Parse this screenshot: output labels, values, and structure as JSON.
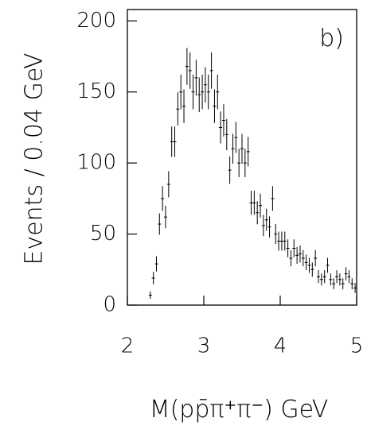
{
  "chart_data": {
    "type": "errorbar",
    "x_label": "M(pp̄π⁺π⁻)  GeV",
    "y_label": "Events / 0.04 GeV",
    "annotation": "b)",
    "x": [
      2.3,
      2.34,
      2.38,
      2.42,
      2.46,
      2.5,
      2.54,
      2.58,
      2.62,
      2.66,
      2.7,
      2.74,
      2.78,
      2.82,
      2.86,
      2.9,
      2.94,
      2.98,
      3.02,
      3.06,
      3.1,
      3.14,
      3.18,
      3.22,
      3.26,
      3.3,
      3.34,
      3.38,
      3.42,
      3.46,
      3.5,
      3.54,
      3.58,
      3.62,
      3.66,
      3.7,
      3.74,
      3.78,
      3.82,
      3.86,
      3.9,
      3.94,
      3.98,
      4.02,
      4.06,
      4.1,
      4.14,
      4.18,
      4.22,
      4.26,
      4.3,
      4.34,
      4.38,
      4.42,
      4.46,
      4.5,
      4.54,
      4.58,
      4.62,
      4.66,
      4.7,
      4.74,
      4.78,
      4.82,
      4.86,
      4.9,
      4.94,
      4.98
    ],
    "values": [
      7,
      19,
      29,
      57,
      75,
      62,
      85,
      115,
      115,
      138,
      150,
      140,
      168,
      165,
      150,
      160,
      148,
      150,
      155,
      150,
      165,
      140,
      150,
      125,
      130,
      120,
      95,
      110,
      118,
      100,
      110,
      100,
      108,
      72,
      72,
      65,
      70,
      56,
      60,
      55,
      75,
      50,
      45,
      45,
      45,
      40,
      33,
      40,
      35,
      36,
      33,
      30,
      28,
      25,
      33,
      20,
      18,
      20,
      28,
      18,
      15,
      20,
      18,
      15,
      22,
      20,
      15,
      12
    ],
    "errors": [
      2.6,
      4.4,
      5.4,
      7.5,
      8.7,
      7.9,
      9.2,
      10.7,
      10.7,
      11.7,
      12.2,
      11.8,
      13,
      12.8,
      12.2,
      12.6,
      12.2,
      12.2,
      12.4,
      12.2,
      12.8,
      11.8,
      12.2,
      11.2,
      11.4,
      11,
      9.7,
      10.5,
      10.9,
      10,
      10.5,
      10,
      10.4,
      8.5,
      8.5,
      8.1,
      8.4,
      7.5,
      7.7,
      7.4,
      8.7,
      7.1,
      6.7,
      6.7,
      6.7,
      6.3,
      5.7,
      6.3,
      5.9,
      6,
      5.7,
      5.5,
      5.3,
      5,
      5.7,
      4.5,
      4.2,
      4.5,
      5.3,
      4.2,
      3.9,
      4.5,
      4.2,
      3.9,
      4.7,
      4.5,
      3.9,
      3.5
    ],
    "color": "#000000",
    "xlim": [
      2,
      5
    ],
    "ylim": [
      0,
      208
    ],
    "xticks": [
      2,
      3,
      4,
      5
    ],
    "yticks": [
      0,
      50,
      100,
      150,
      200
    ]
  }
}
